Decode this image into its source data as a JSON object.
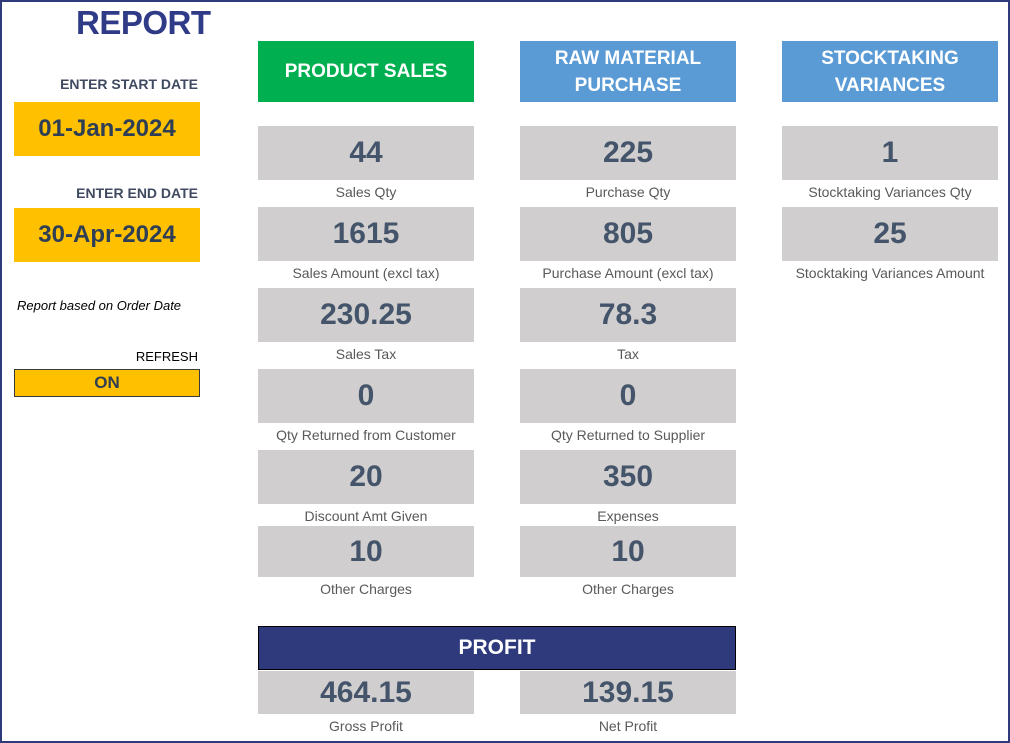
{
  "report": {
    "title": "REPORT",
    "start_date_label": "ENTER START DATE",
    "start_date": "01-Jan-2024",
    "end_date_label": "ENTER END DATE",
    "end_date": "30-Apr-2024",
    "note": "Report based on Order Date",
    "refresh_label": "REFRESH",
    "refresh_value": "ON"
  },
  "sections": {
    "product_sales": {
      "title": "PRODUCT SALES",
      "items": [
        {
          "value": "44",
          "label": "Sales Qty"
        },
        {
          "value": "1615",
          "label": "Sales Amount (excl tax)"
        },
        {
          "value": "230.25",
          "label": "Sales Tax"
        },
        {
          "value": "0",
          "label": "Qty Returned from Customer"
        },
        {
          "value": "20",
          "label": "Discount Amt Given"
        },
        {
          "value": "10",
          "label": "Other Charges"
        }
      ]
    },
    "raw_material": {
      "title": "RAW MATERIAL\nPURCHASE",
      "items": [
        {
          "value": "225",
          "label": "Purchase Qty"
        },
        {
          "value": "805",
          "label": "Purchase Amount (excl tax)"
        },
        {
          "value": "78.3",
          "label": "Tax"
        },
        {
          "value": "0",
          "label": "Qty Returned to Supplier"
        },
        {
          "value": "350",
          "label": "Expenses"
        },
        {
          "value": "10",
          "label": "Other Charges"
        }
      ]
    },
    "stocktaking": {
      "title": "STOCKTAKING\nVARIANCES",
      "items": [
        {
          "value": "1",
          "label": "Stocktaking Variances Qty"
        },
        {
          "value": "25",
          "label": "Stocktaking Variances Amount"
        }
      ]
    }
  },
  "profit": {
    "title": "PROFIT",
    "gross": {
      "value": "464.15",
      "label": "Gross Profit"
    },
    "net": {
      "value": "139.15",
      "label": "Net Profit"
    }
  },
  "colors": {
    "title_navy": "#2f3b86",
    "input_yellow": "#ffc000",
    "header_green": "#00b050",
    "header_blue": "#5b9bd5",
    "tile_gray": "#d0cece",
    "value_slate": "#44546a",
    "profit_navy": "#2e3a7c"
  }
}
